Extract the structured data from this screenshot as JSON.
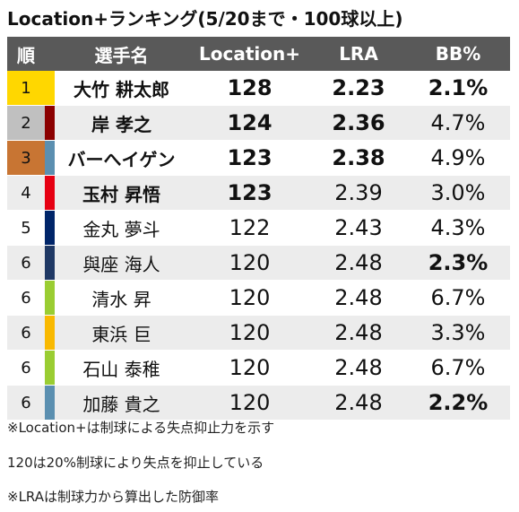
{
  "title": "Location+ランキング(5/20まで・100球以上)",
  "headers": {
    "rank": "順",
    "name": "選手名",
    "location_plus": "Location+",
    "lra": "LRA",
    "bb_pct": "BB%"
  },
  "rows": [
    {
      "rank": "1",
      "name": "大竹 耕太郎",
      "location_plus": "128",
      "lra": "2.23",
      "bb_pct": "2.1%",
      "rank_bg": "#ffd700",
      "team_color": "#ffd700",
      "bold_loc": true,
      "bold_lra": true,
      "bold_bb": true
    },
    {
      "rank": "2",
      "name": "岸 孝之",
      "location_plus": "124",
      "lra": "2.36",
      "bb_pct": "4.7%",
      "rank_bg": "#c0c0c0",
      "team_color": "#8b0000",
      "bold_loc": true,
      "bold_lra": true,
      "bold_bb": false
    },
    {
      "rank": "3",
      "name": "バーへイゲン",
      "location_plus": "123",
      "lra": "2.38",
      "bb_pct": "4.9%",
      "rank_bg": "#c87533",
      "team_color": "#5b8fb0",
      "bold_loc": true,
      "bold_lra": true,
      "bold_bb": false
    },
    {
      "rank": "4",
      "name": "玉村 昇悟",
      "location_plus": "123",
      "lra": "2.39",
      "bb_pct": "3.0%",
      "rank_bg": "",
      "team_color": "#e60012",
      "bold_loc": true,
      "bold_lra": false,
      "bold_bb": false
    },
    {
      "rank": "5",
      "name": "金丸 夢斗",
      "location_plus": "122",
      "lra": "2.43",
      "bb_pct": "4.3%",
      "rank_bg": "",
      "team_color": "#002569",
      "bold_loc": false,
      "bold_lra": false,
      "bold_bb": false
    },
    {
      "rank": "6",
      "name": "與座 海人",
      "location_plus": "120",
      "lra": "2.48",
      "bb_pct": "2.3%",
      "rank_bg": "",
      "team_color": "#1f3864",
      "bold_loc": false,
      "bold_lra": false,
      "bold_bb": true
    },
    {
      "rank": "6",
      "name": "清水 昇",
      "location_plus": "120",
      "lra": "2.48",
      "bb_pct": "6.7%",
      "rank_bg": "",
      "team_color": "#9acd32",
      "bold_loc": false,
      "bold_lra": false,
      "bold_bb": false
    },
    {
      "rank": "6",
      "name": "東浜 巨",
      "location_plus": "120",
      "lra": "2.48",
      "bb_pct": "3.3%",
      "rank_bg": "",
      "team_color": "#f9b900",
      "bold_loc": false,
      "bold_lra": false,
      "bold_bb": false
    },
    {
      "rank": "6",
      "name": "石山 泰稚",
      "location_plus": "120",
      "lra": "2.48",
      "bb_pct": "6.7%",
      "rank_bg": "",
      "team_color": "#9acd32",
      "bold_loc": false,
      "bold_lra": false,
      "bold_bb": false
    },
    {
      "rank": "6",
      "name": "加藤 貴之",
      "location_plus": "120",
      "lra": "2.48",
      "bb_pct": "2.2%",
      "rank_bg": "",
      "team_color": "#5b8fb0",
      "bold_loc": false,
      "bold_lra": false,
      "bold_bb": true
    }
  ],
  "notes": [
    "※Location+は制球による失点抑止力を示す",
    "120は20%制球により失点を抑止している",
    "※LRAは制球力から算出した防御率"
  ]
}
